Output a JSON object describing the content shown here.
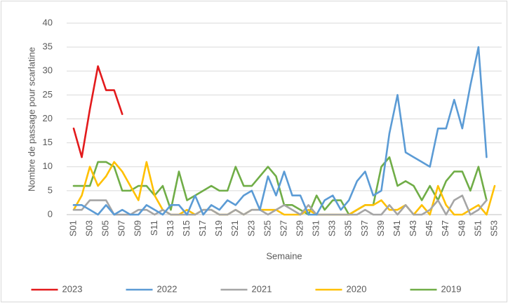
{
  "chart_data": {
    "type": "line",
    "x_label": "Semaine",
    "y_label": "Nombre de passage pour scarlatine",
    "categories": [
      "S01",
      null,
      "S03",
      null,
      "S05",
      null,
      "S07",
      null,
      "S09",
      null,
      "S11",
      null,
      "S13",
      null,
      "S15",
      null,
      "S17",
      null,
      "S19",
      null,
      "S21",
      null,
      "S23",
      null,
      "S25",
      null,
      "S27",
      null,
      "S29",
      null,
      "S31",
      null,
      "S33",
      null,
      "S35",
      null,
      "S37",
      null,
      "S39",
      null,
      "S41",
      null,
      "S43",
      null,
      "S45",
      null,
      "S47",
      null,
      "S49",
      null,
      "S51",
      null,
      "S53"
    ],
    "ylim": [
      0,
      40
    ],
    "yticks": [
      0,
      5,
      10,
      15,
      20,
      25,
      30,
      35,
      40
    ],
    "grid": true,
    "legend": "bottom",
    "series": [
      {
        "name": "2023",
        "color": "#e31a1c",
        "values": [
          18,
          12,
          22,
          31,
          26,
          26,
          21,
          null,
          null,
          null,
          null,
          null,
          null,
          null,
          null,
          null,
          null,
          null,
          null,
          null,
          null,
          null,
          null,
          null,
          null,
          null,
          null,
          null,
          null,
          null,
          null,
          null,
          null,
          null,
          null,
          null,
          null,
          null,
          null,
          null,
          null,
          null,
          null,
          null,
          null,
          null,
          null,
          null,
          null,
          null,
          null,
          null,
          null
        ]
      },
      {
        "name": "2022",
        "color": "#5b9bd5",
        "values": [
          2,
          2,
          1,
          0,
          2,
          0,
          1,
          0,
          0,
          2,
          1,
          0,
          2,
          2,
          0,
          4,
          0,
          2,
          1,
          3,
          2,
          4,
          5,
          1,
          8,
          4,
          9,
          4,
          4,
          0,
          0,
          3,
          4,
          1,
          3,
          7,
          9,
          4,
          5,
          17,
          25,
          13,
          12,
          11,
          10,
          18,
          18,
          24,
          18,
          27,
          35,
          12,
          null
        ]
      },
      {
        "name": "2021",
        "color": "#a5a5a5",
        "values": [
          1,
          1,
          3,
          3,
          3,
          0,
          0,
          0,
          1,
          1,
          0,
          1,
          0,
          0,
          0,
          0,
          1,
          1,
          0,
          0,
          1,
          0,
          1,
          1,
          0,
          1,
          2,
          1,
          0,
          2,
          0,
          0,
          0,
          0,
          0,
          0,
          1,
          0,
          0,
          2,
          0,
          2,
          0,
          0,
          1,
          3,
          0,
          3,
          4,
          0,
          1,
          3,
          null
        ]
      },
      {
        "name": "2020",
        "color": "#ffc000",
        "values": [
          1,
          4,
          10,
          6,
          8,
          11,
          9,
          6,
          3,
          11,
          4,
          1,
          0,
          0,
          1,
          0,
          1,
          1,
          0,
          0,
          1,
          0,
          1,
          1,
          1,
          1,
          0,
          0,
          0,
          1,
          0,
          0,
          0,
          0,
          0,
          1,
          2,
          2,
          3,
          1,
          1,
          2,
          0,
          2,
          0,
          6,
          2,
          0,
          0,
          1,
          2,
          0,
          6
        ]
      },
      {
        "name": "2019",
        "color": "#70ad47",
        "values": [
          6,
          6,
          6,
          11,
          11,
          10,
          5,
          5,
          6,
          6,
          4,
          6,
          1,
          9,
          3,
          4,
          5,
          6,
          5,
          5,
          10,
          6,
          6,
          8,
          10,
          8,
          2,
          2,
          1,
          0,
          4,
          1,
          3,
          3,
          0,
          1,
          2,
          2,
          10,
          12,
          6,
          7,
          6,
          3,
          6,
          3,
          7,
          9,
          9,
          5,
          10,
          3,
          null
        ]
      }
    ]
  }
}
